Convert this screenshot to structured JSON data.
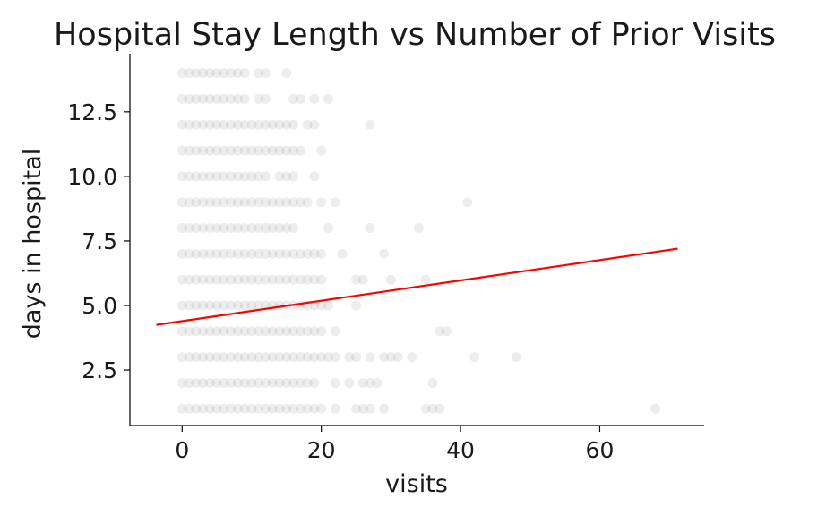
{
  "chart_data": {
    "type": "scatter",
    "title": "Hospital Stay Length vs Number of Prior Visits",
    "xlabel": "visits",
    "ylabel": "days in hospital",
    "xlim": [
      -7.5,
      75
    ],
    "ylim": [
      0.35,
      14.75
    ],
    "x_ticks": [
      0,
      20,
      40,
      60
    ],
    "x_tick_labels": [
      "0",
      "20",
      "40",
      "60"
    ],
    "y_ticks": [
      2.5,
      5.0,
      7.5,
      10.0,
      12.5
    ],
    "y_tick_labels": [
      "2.5",
      "5.0",
      "7.5",
      "10.0",
      "12.5"
    ],
    "grid": false,
    "marker_color": "#000000",
    "marker_alpha": 0.07,
    "points": [
      {
        "y": 14,
        "x": [
          0,
          1,
          2,
          3,
          4,
          5,
          6,
          7,
          8,
          9,
          11,
          12,
          15
        ]
      },
      {
        "y": 13,
        "x": [
          0,
          1,
          2,
          3,
          4,
          5,
          6,
          7,
          8,
          9,
          11,
          12,
          16,
          17,
          19,
          21
        ]
      },
      {
        "y": 12,
        "x": [
          0,
          1,
          2,
          3,
          4,
          5,
          6,
          7,
          8,
          9,
          10,
          11,
          12,
          13,
          14,
          15,
          16,
          18,
          19,
          27
        ]
      },
      {
        "y": 11,
        "x": [
          0,
          1,
          2,
          3,
          4,
          5,
          6,
          7,
          8,
          9,
          10,
          11,
          12,
          13,
          14,
          15,
          16,
          17,
          20
        ]
      },
      {
        "y": 10,
        "x": [
          0,
          1,
          2,
          3,
          4,
          5,
          6,
          7,
          8,
          9,
          10,
          11,
          12,
          14,
          15,
          16,
          19
        ]
      },
      {
        "y": 9,
        "x": [
          0,
          1,
          2,
          3,
          4,
          5,
          6,
          7,
          8,
          9,
          10,
          11,
          12,
          13,
          14,
          15,
          16,
          17,
          18,
          20,
          22,
          41
        ]
      },
      {
        "y": 8,
        "x": [
          0,
          1,
          2,
          3,
          4,
          5,
          6,
          7,
          8,
          9,
          10,
          11,
          12,
          13,
          14,
          15,
          16,
          21,
          27,
          34
        ]
      },
      {
        "y": 7,
        "x": [
          0,
          1,
          2,
          3,
          4,
          5,
          6,
          7,
          8,
          9,
          10,
          11,
          12,
          13,
          14,
          15,
          16,
          17,
          18,
          19,
          20,
          23,
          29
        ]
      },
      {
        "y": 6,
        "x": [
          0,
          1,
          2,
          3,
          4,
          5,
          6,
          7,
          8,
          9,
          10,
          11,
          12,
          13,
          14,
          15,
          16,
          17,
          18,
          19,
          20,
          25,
          26,
          30,
          35
        ]
      },
      {
        "y": 5,
        "x": [
          0,
          1,
          2,
          3,
          4,
          5,
          6,
          7,
          8,
          9,
          10,
          11,
          12,
          13,
          14,
          15,
          16,
          17,
          18,
          19,
          20,
          21,
          25
        ]
      },
      {
        "y": 4,
        "x": [
          0,
          1,
          2,
          3,
          4,
          5,
          6,
          7,
          8,
          9,
          10,
          11,
          12,
          13,
          14,
          15,
          16,
          17,
          18,
          19,
          20,
          22,
          37,
          38
        ]
      },
      {
        "y": 3,
        "x": [
          0,
          1,
          2,
          3,
          4,
          5,
          6,
          7,
          8,
          9,
          10,
          11,
          12,
          13,
          14,
          15,
          16,
          17,
          18,
          19,
          20,
          21,
          22,
          24,
          25,
          27,
          29,
          30,
          31,
          33,
          42,
          48
        ]
      },
      {
        "y": 2,
        "x": [
          0,
          1,
          2,
          3,
          4,
          5,
          6,
          7,
          8,
          9,
          10,
          11,
          12,
          13,
          14,
          15,
          16,
          17,
          18,
          19,
          22,
          24,
          26,
          27,
          28,
          36
        ]
      },
      {
        "y": 1,
        "x": [
          0,
          1,
          2,
          3,
          4,
          5,
          6,
          7,
          8,
          9,
          10,
          11,
          12,
          13,
          14,
          15,
          16,
          17,
          18,
          19,
          20,
          22,
          25,
          26,
          27,
          29,
          35,
          36,
          37,
          68
        ]
      }
    ],
    "regression_line": {
      "x": [
        -3.7,
        71.2
      ],
      "y": [
        4.25,
        7.2
      ],
      "color": "#ff0000"
    }
  }
}
